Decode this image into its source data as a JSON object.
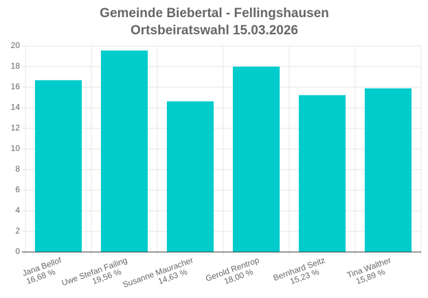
{
  "chart_data": {
    "type": "bar",
    "title": "Gemeinde Biebertal - Fellingshausen",
    "subtitle": "Ortsbeiratswahl 15.03.2026",
    "categories": [
      "Jana Bellof",
      "Uwe Stefan Failing",
      "Susanne Mauracher",
      "Gerold Rentrop",
      "Bernhard Seitz",
      "Tina Walther"
    ],
    "values": [
      16.68,
      19.56,
      14.63,
      18.0,
      15.23,
      15.89
    ],
    "value_labels": [
      "16,68 %",
      "19,56 %",
      "14,63 %",
      "18,00 %",
      "15,23 %",
      "15,89 %"
    ],
    "color": "#00cccc",
    "ylim": [
      0,
      20
    ],
    "yticks": [
      0,
      2,
      4,
      6,
      8,
      10,
      12,
      14,
      16,
      18,
      20
    ],
    "grid": true
  }
}
